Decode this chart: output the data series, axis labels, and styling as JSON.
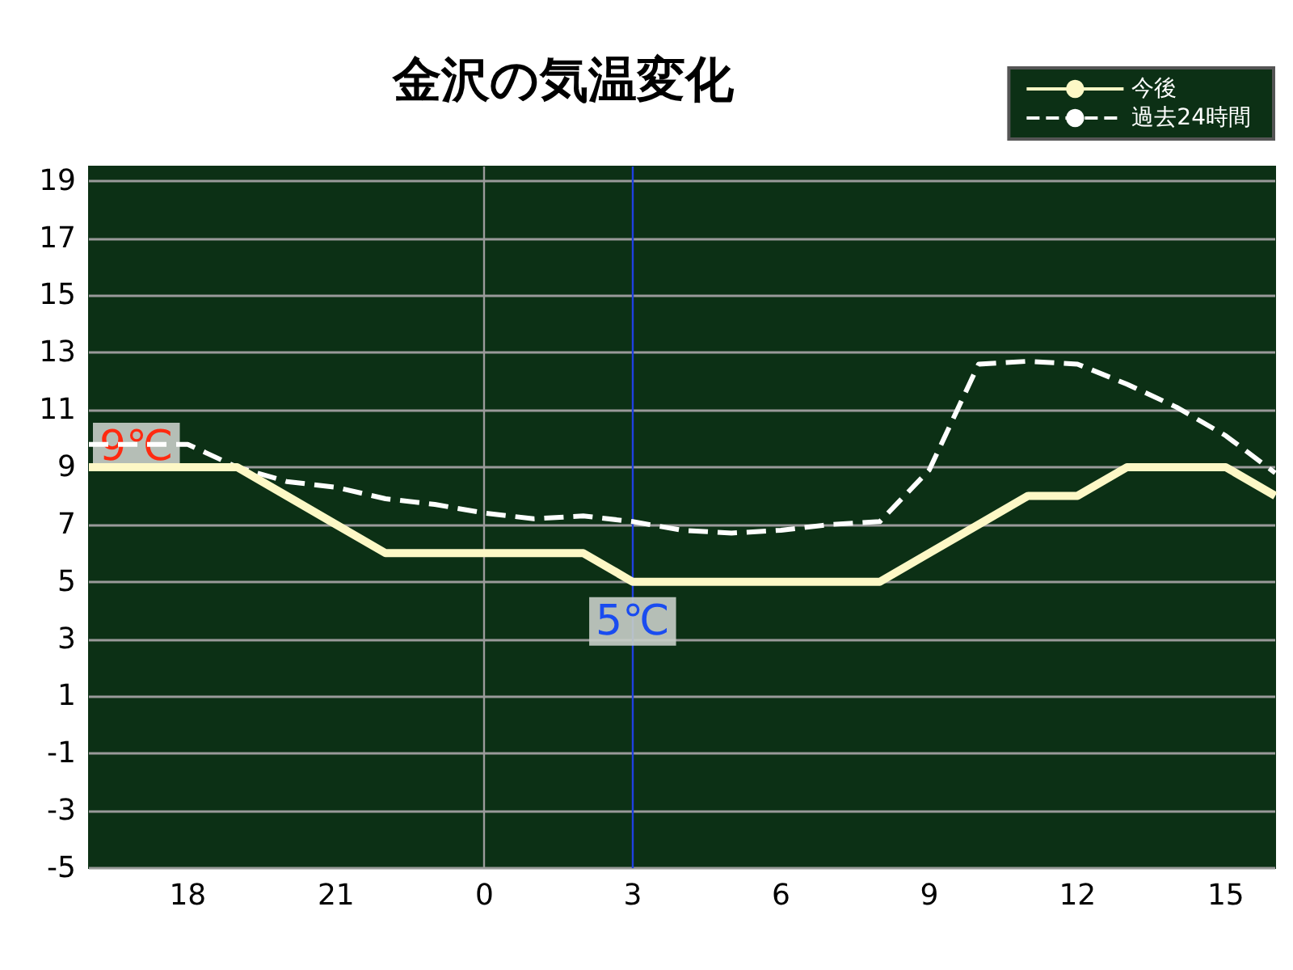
{
  "chart_data": {
    "type": "line",
    "title": "金沢の気温変化",
    "categories": [
      null,
      null,
      "18",
      null,
      null,
      "21",
      null,
      null,
      "0",
      null,
      null,
      "3",
      null,
      null,
      "6",
      null,
      null,
      "9",
      null,
      null,
      "12",
      null,
      null,
      "15",
      null
    ],
    "ylim": [
      -5,
      19.5
    ],
    "yticks": [
      -5,
      -3,
      -1,
      1,
      3,
      5,
      7,
      9,
      11,
      13,
      15,
      17,
      19
    ],
    "grid": "y",
    "legend": "top right",
    "marker": "none",
    "series": [
      {
        "name": "今後",
        "color": "#fdf8c6",
        "line_style": "solid",
        "values": [
          9,
          9,
          9,
          9,
          8,
          7,
          6,
          6,
          6,
          6,
          6,
          5,
          5,
          5,
          5,
          5,
          5,
          6,
          7,
          8,
          8,
          9,
          9,
          9,
          8
        ]
      },
      {
        "name": "過去24時間",
        "color": "#ffffff",
        "line_style": "dashed",
        "values": [
          9.8,
          9.8,
          9.8,
          9,
          8.5,
          8.3,
          7.9,
          7.7,
          7.4,
          7.2,
          7.3,
          7.1,
          6.8,
          6.7,
          6.8,
          7.0,
          7.1,
          8.9,
          12.6,
          12.7,
          12.6,
          11.9,
          11.1,
          10.1,
          8.8
        ]
      }
    ],
    "ref_lines": [
      {
        "axis": "x",
        "value": "0",
        "color": "#9a9a9a"
      },
      {
        "axis": "x",
        "value": "3",
        "color": "#1f3fe0"
      }
    ],
    "annotations": [
      {
        "text": "9℃",
        "y": 9
      },
      {
        "text": "5℃",
        "x": "3",
        "y": 5
      }
    ]
  }
}
